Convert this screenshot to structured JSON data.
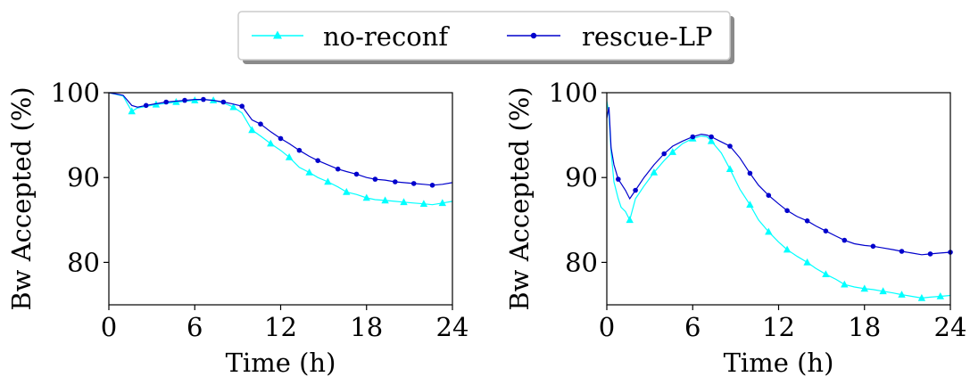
{
  "legend": {
    "placement": "top-center",
    "entries": [
      {
        "label": "no-reconf",
        "color": "#00FFFF",
        "marker": "triangle"
      },
      {
        "label": "rescue-LP",
        "color": "#0000CC",
        "marker": "circle"
      }
    ]
  },
  "chart_data": [
    {
      "type": "line",
      "xlabel": "Time (h)",
      "ylabel": "Bw Accepted (%)",
      "xlim": [
        0,
        24
      ],
      "ylim": [
        75,
        100
      ],
      "xticks": [
        0,
        6,
        12,
        18,
        24
      ],
      "yticks": [
        80,
        90,
        100
      ],
      "grid": false,
      "series": [
        {
          "name": "no-reconf",
          "color": "#00FFFF",
          "marker": "triangle",
          "x": [
            0,
            1.0,
            1.6,
            2.0,
            3.3,
            4.7,
            6.0,
            6.7,
            7.3,
            8.0,
            8.7,
            9.3,
            10.0,
            10.6,
            11.3,
            12.0,
            12.6,
            13.3,
            14.0,
            14.6,
            15.3,
            16.0,
            16.6,
            17.3,
            18.0,
            18.6,
            19.3,
            20.0,
            20.6,
            21.3,
            22.0,
            22.6,
            23.3,
            24.0
          ],
          "y": [
            100,
            99.6,
            97.8,
            98.2,
            98.6,
            98.9,
            99.1,
            99.2,
            99.1,
            98.8,
            98.3,
            97.6,
            95.6,
            94.9,
            94.0,
            93.2,
            92.4,
            91.2,
            90.6,
            90.0,
            89.5,
            88.9,
            88.3,
            88.0,
            87.6,
            87.4,
            87.3,
            87.2,
            87.1,
            87.0,
            86.9,
            86.8,
            87.0,
            87.2
          ],
          "marker_x": [
            1.6,
            3.3,
            4.7,
            6.0,
            7.3,
            8.7,
            10.0,
            11.3,
            12.6,
            14.0,
            15.3,
            16.6,
            18.0,
            19.3,
            20.6,
            22.0,
            23.3
          ]
        },
        {
          "name": "rescue-LP",
          "color": "#0000CC",
          "marker": "circle",
          "x": [
            0,
            1.0,
            1.6,
            2.0,
            2.6,
            3.3,
            4.0,
            4.7,
            5.3,
            6.0,
            6.6,
            7.3,
            8.0,
            8.6,
            9.3,
            10.0,
            10.6,
            11.3,
            12.0,
            12.6,
            13.3,
            14.0,
            14.6,
            15.3,
            16.0,
            16.6,
            17.3,
            18.0,
            18.6,
            19.3,
            20.0,
            20.6,
            21.3,
            22.0,
            22.6,
            23.3,
            24.0
          ],
          "y": [
            100,
            99.7,
            98.5,
            98.3,
            98.5,
            98.7,
            98.9,
            99.0,
            99.1,
            99.2,
            99.2,
            99.1,
            98.9,
            98.7,
            98.4,
            96.8,
            96.3,
            95.4,
            94.6,
            94.0,
            93.2,
            92.5,
            92.0,
            91.5,
            91.0,
            90.7,
            90.4,
            90.0,
            89.8,
            89.7,
            89.5,
            89.4,
            89.3,
            89.2,
            89.1,
            89.2,
            89.4
          ],
          "marker_x": [
            2.6,
            4.0,
            5.3,
            6.6,
            8.0,
            9.3,
            10.6,
            12.0,
            13.3,
            14.6,
            16.0,
            17.3,
            18.6,
            20.0,
            21.3,
            22.6
          ]
        }
      ]
    },
    {
      "type": "line",
      "xlabel": "Time (h)",
      "ylabel": "Bw Accepted (%)",
      "xlim": [
        0,
        24
      ],
      "ylim": [
        75,
        100
      ],
      "xticks": [
        0,
        6,
        12,
        18,
        24
      ],
      "yticks": [
        80,
        90,
        100
      ],
      "grid": false,
      "series": [
        {
          "name": "no-reconf",
          "color": "#00FFFF",
          "marker": "triangle",
          "x": [
            0,
            0.15,
            0.3,
            0.5,
            0.8,
            1.0,
            1.3,
            1.6,
            2.0,
            2.6,
            3.3,
            4.0,
            4.6,
            5.3,
            6.0,
            6.6,
            7.0,
            7.3,
            8.0,
            8.6,
            9.3,
            10.0,
            10.6,
            11.3,
            12.0,
            12.6,
            13.3,
            14.0,
            14.6,
            15.3,
            16.0,
            16.6,
            17.3,
            18.0,
            18.6,
            19.3,
            20.0,
            20.6,
            21.3,
            22.0,
            22.6,
            23.3,
            24.0
          ],
          "y": [
            99.0,
            97.5,
            93.0,
            89.5,
            87.5,
            86.5,
            86.0,
            85.0,
            87.5,
            89.0,
            90.6,
            92.0,
            93.0,
            94.0,
            94.6,
            94.9,
            94.8,
            94.3,
            92.9,
            91.0,
            88.6,
            86.8,
            85.0,
            83.6,
            82.4,
            81.5,
            80.7,
            80.0,
            79.3,
            78.6,
            78.0,
            77.4,
            77.1,
            76.9,
            76.8,
            76.6,
            76.4,
            76.2,
            76.0,
            75.8,
            75.9,
            76.0,
            76.1
          ],
          "marker_x": [
            1.6,
            3.3,
            4.6,
            6.0,
            7.3,
            8.6,
            10.0,
            11.3,
            12.6,
            14.0,
            15.3,
            16.6,
            18.0,
            19.3,
            20.6,
            22.0,
            23.3
          ]
        },
        {
          "name": "rescue-LP",
          "color": "#0000CC",
          "marker": "circle",
          "x": [
            0,
            0.15,
            0.3,
            0.5,
            0.8,
            1.0,
            1.3,
            1.6,
            2.0,
            2.6,
            3.3,
            4.0,
            4.6,
            5.3,
            6.0,
            6.6,
            7.0,
            7.3,
            8.0,
            8.6,
            9.3,
            10.0,
            10.6,
            11.3,
            12.0,
            12.6,
            13.3,
            14.0,
            14.6,
            15.3,
            16.0,
            16.6,
            17.3,
            18.0,
            18.6,
            19.3,
            20.0,
            20.6,
            21.3,
            22.0,
            22.6,
            23.3,
            24.0
          ],
          "y": [
            97.0,
            98.3,
            93.5,
            91.5,
            89.8,
            89.3,
            88.5,
            87.5,
            88.5,
            90.0,
            91.5,
            92.8,
            93.7,
            94.3,
            94.8,
            95.1,
            95.0,
            94.8,
            94.2,
            93.7,
            92.3,
            90.5,
            89.1,
            87.9,
            86.9,
            86.1,
            85.4,
            84.9,
            84.3,
            83.7,
            83.1,
            82.6,
            82.2,
            82.0,
            81.9,
            81.7,
            81.5,
            81.3,
            81.1,
            80.9,
            81.0,
            81.1,
            81.2
          ],
          "marker_x": [
            0.8,
            2.0,
            4.0,
            6.0,
            7.3,
            8.6,
            10.0,
            11.3,
            12.6,
            14.0,
            15.3,
            16.6,
            18.6,
            20.6,
            22.6,
            24.0
          ]
        }
      ]
    }
  ]
}
